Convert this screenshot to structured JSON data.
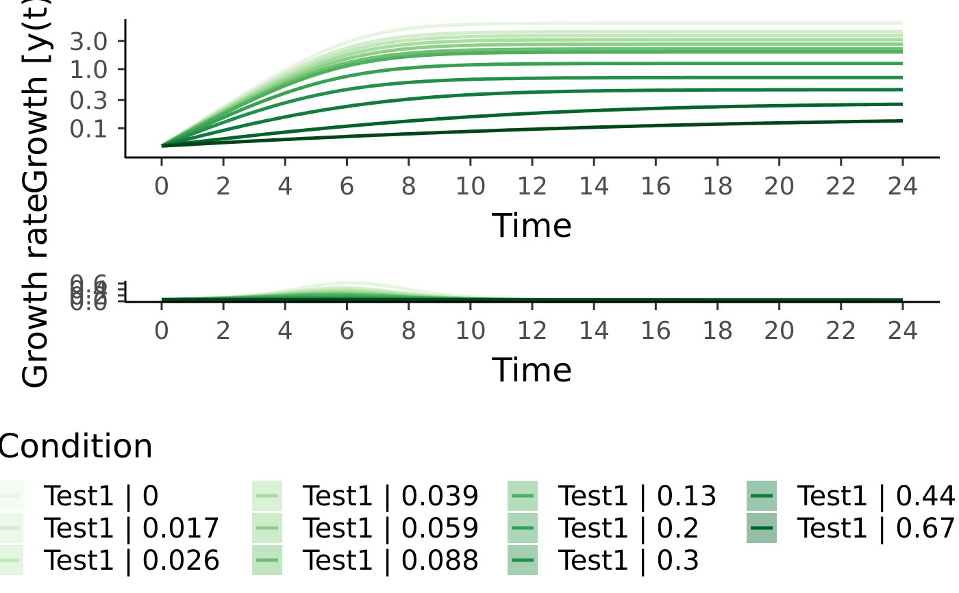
{
  "chart_data": [
    {
      "type": "line",
      "panel": "growth",
      "xlabel": "Time",
      "ylabel": "Growth [y(t)]",
      "y_scale": "log",
      "xlim": [
        0,
        24
      ],
      "ylim": [
        0.032,
        7.0
      ],
      "x_ticks": [
        0,
        2,
        4,
        6,
        8,
        10,
        12,
        14,
        16,
        18,
        20,
        22,
        24
      ],
      "x_tick_labels": [
        "0",
        "2",
        "4",
        "6",
        "8",
        "10",
        "12",
        "14",
        "16",
        "18",
        "20",
        "22",
        "24"
      ],
      "y_ticks": [
        0.1,
        0.3,
        1.0,
        3.0
      ],
      "y_tick_labels": [
        "0.1",
        "0.3",
        "1.0",
        "3.0"
      ],
      "model": "logistic",
      "series": [
        {
          "name": "Test1 | 0",
          "color": "#e5f5e0",
          "y0": 0.05,
          "plateau": 6.0,
          "rate": 0.78
        },
        {
          "name": "Test1 | 0.017",
          "color": "#d3edcc",
          "y0": 0.05,
          "plateau": 4.3,
          "rate": 0.76
        },
        {
          "name": "Test1 | 0.026",
          "color": "#c1e6b9",
          "y0": 0.05,
          "plateau": 3.7,
          "rate": 0.74
        },
        {
          "name": "Test1 | 0.039",
          "color": "#a8dc9f",
          "y0": 0.05,
          "plateau": 3.15,
          "rate": 0.72
        },
        {
          "name": "Test1 | 0.059",
          "color": "#8ccf86",
          "y0": 0.05,
          "plateau": 2.65,
          "rate": 0.7
        },
        {
          "name": "Test1 | 0.088",
          "color": "#6cbf71",
          "y0": 0.05,
          "plateau": 2.2,
          "rate": 0.68
        },
        {
          "name": "Test1 | 0.13",
          "color": "#4eaf5e",
          "y0": 0.05,
          "plateau": 1.95,
          "rate": 0.66
        },
        {
          "name": "Test1 | 0.2",
          "color": "#37a055",
          "y0": 0.05,
          "plateau": 1.25,
          "rate": 0.6
        },
        {
          "name": "Test1 | 0.3",
          "color": "#248f4a",
          "y0": 0.05,
          "plateau": 0.72,
          "rate": 0.52
        },
        {
          "name": "Test1 | 0.44",
          "color": "#117a3d",
          "y0": 0.05,
          "plateau": 0.45,
          "rate": 0.36
        },
        {
          "name": "Test1 | 0.67",
          "color": "#03632c",
          "y0": 0.05,
          "plateau": 0.27,
          "rate": 0.18
        },
        {
          "name": "",
          "color": "#00441b",
          "y0": 0.05,
          "plateau": 0.16,
          "rate": 0.1
        }
      ]
    },
    {
      "type": "line",
      "panel": "growth-rate",
      "xlabel": "Time",
      "ylabel": "Growth rate",
      "xlim": [
        0,
        24
      ],
      "x_ticks": [
        0,
        2,
        4,
        6,
        8,
        10,
        12,
        14,
        16,
        18,
        20,
        22,
        24
      ],
      "x_tick_labels": [
        "0",
        "2",
        "4",
        "6",
        "8",
        "10",
        "12",
        "14",
        "16",
        "18",
        "20",
        "22",
        "24"
      ],
      "y_tick_labels": [
        "0.0",
        "0.2",
        "0.4",
        "0.6"
      ]
    }
  ],
  "legend": {
    "title": "Condition",
    "placement": "bottom",
    "columns": [
      [
        {
          "label": "Test1 | 0",
          "color": "#e5f5e0"
        },
        {
          "label": "Test1 | 0.017",
          "color": "#d3edcc"
        },
        {
          "label": "Test1 | 0.026",
          "color": "#c1e6b9"
        }
      ],
      [
        {
          "label": "Test1 | 0.039",
          "color": "#a8dc9f"
        },
        {
          "label": "Test1 | 0.059",
          "color": "#8ccf86"
        },
        {
          "label": "Test1 | 0.088",
          "color": "#6cbf71"
        }
      ],
      [
        {
          "label": "Test1 | 0.13",
          "color": "#4eaf5e"
        },
        {
          "label": "Test1 | 0.2",
          "color": "#37a055"
        },
        {
          "label": "Test1 | 0.3",
          "color": "#248f4a"
        }
      ],
      [
        {
          "label": "Test1 | 0.44",
          "color": "#117a3d"
        },
        {
          "label": "Test1 | 0.67",
          "color": "#03632c"
        }
      ]
    ]
  }
}
